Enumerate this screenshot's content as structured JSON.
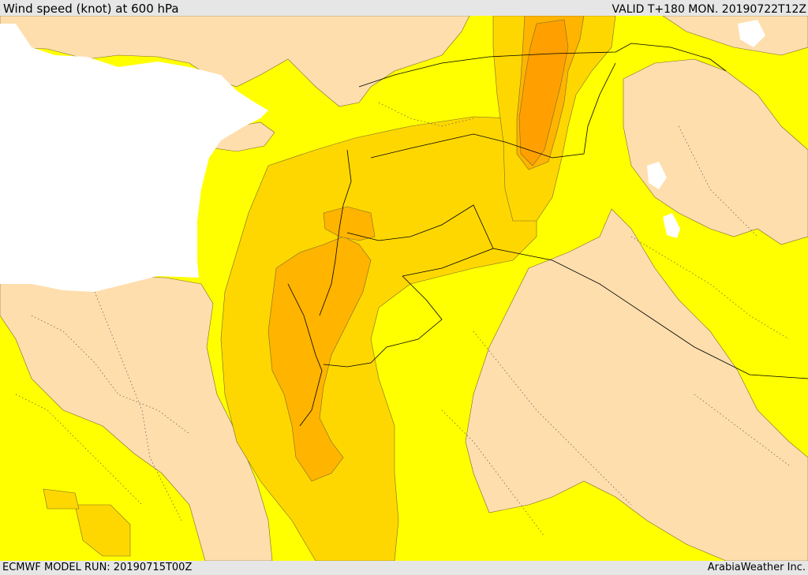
{
  "header": {
    "title": "Wind speed (knot) at 600 hPa",
    "valid": "VALID T+180 MON. 20190722T12Z"
  },
  "footer": {
    "model_run": "ECMWF MODEL RUN: 20190715T00Z",
    "credit": "ArabiaWeather Inc."
  },
  "colors": {
    "sea": "#ffffff",
    "land_calm": "#ffdead",
    "band_1": "#ffff00",
    "band_2": "#ffd700",
    "band_3": "#ffb400",
    "band_4": "#ffa000",
    "border": "#000000",
    "internal_border": "#555555"
  }
}
